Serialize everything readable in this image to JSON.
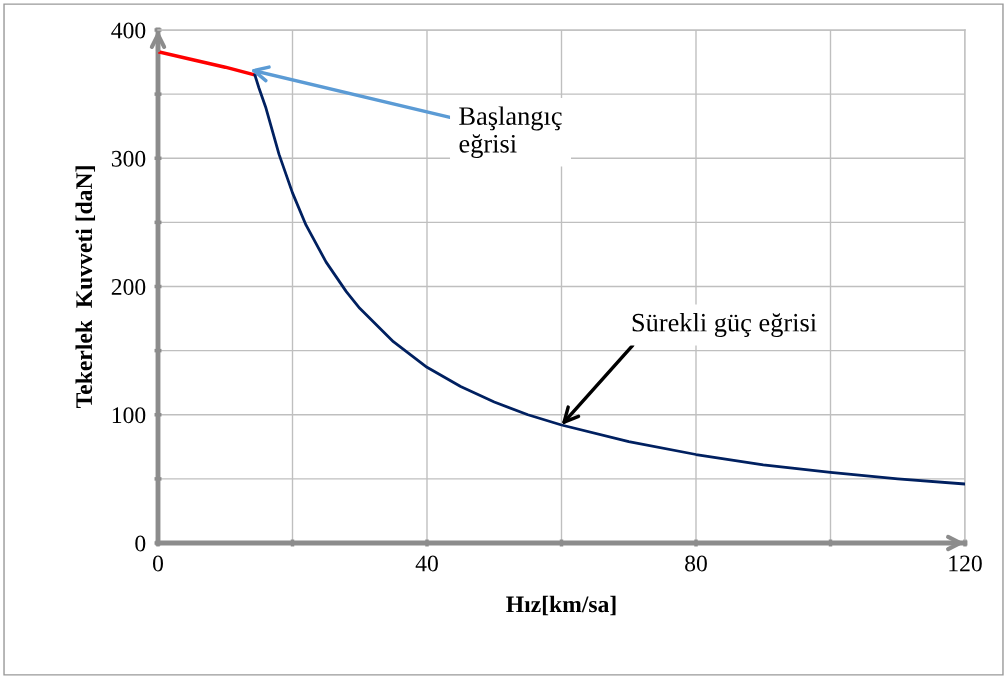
{
  "chart_data": {
    "type": "line",
    "xlabel": "Hız[km/sa]",
    "ylabel": "Tekerlek  Kuvveti [daN]",
    "series": [
      {
        "color": "#ff0000",
        "x": [
          0,
          5,
          10,
          14.4
        ],
        "values": [
          383,
          377,
          371,
          365
        ]
      },
      {
        "color": "#002060",
        "x": [
          14.4,
          15,
          16,
          18,
          20,
          22,
          25,
          28,
          30,
          35,
          40,
          45,
          50,
          55,
          60,
          70,
          80,
          90,
          100,
          110,
          120
        ],
        "values": [
          365,
          355,
          340,
          303,
          273,
          248,
          219,
          196,
          183,
          157,
          137,
          122,
          110,
          100,
          92,
          79,
          69,
          61,
          55,
          50,
          46
        ]
      }
    ],
    "xlim": [
      0,
      120
    ],
    "ylim": [
      0,
      400
    ],
    "xticks": [
      0,
      {
        "value": 20,
        "label": null
      },
      40,
      {
        "value": 60,
        "label": null
      },
      80,
      {
        "value": 100,
        "label": null
      },
      120
    ],
    "yticks": [
      0,
      {
        "value": 50,
        "label": null
      },
      100,
      {
        "value": 150,
        "label": null
      },
      200,
      {
        "value": 250,
        "label": null
      },
      300,
      {
        "value": 350,
        "label": null
      },
      400
    ],
    "grid": true,
    "marker": "none",
    "line_style": "solid",
    "annotations": [
      {
        "text": "Başlangıç\neğrisi",
        "x": 13.7,
        "y": 369
      },
      {
        "text": "Sürekli güç eğrisi",
        "x": 60,
        "y": 92
      }
    ]
  }
}
